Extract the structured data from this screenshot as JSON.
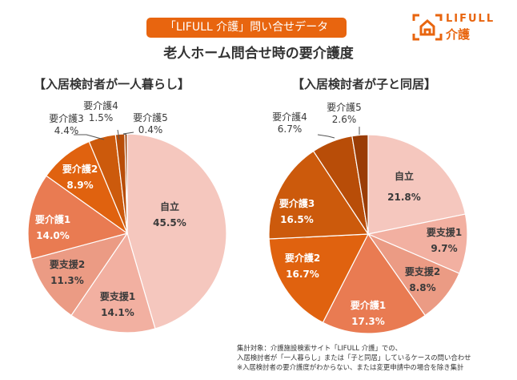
{
  "header": {
    "badge": "「LIFULL 介護」問い合せデータ",
    "title": "老人ホーム問合せ時の要介護度",
    "logo_line1": "LIFULL",
    "logo_line2": "介護",
    "brand_color": "#e8650f"
  },
  "chart_data": [
    {
      "type": "pie",
      "title": "【入居検討者が一人暮らし】",
      "categories": [
        "自立",
        "要支援1",
        "要支援2",
        "要介護1",
        "要介護2",
        "要介護3",
        "要介護4",
        "要介護5"
      ],
      "values": [
        45.5,
        14.1,
        11.3,
        14.0,
        8.9,
        4.4,
        1.5,
        0.4
      ],
      "labels": [
        "45.5%",
        "14.1%",
        "11.3%",
        "14.0%",
        "8.9%",
        "4.4%",
        "1.5%",
        "0.4%"
      ],
      "colors": [
        "#f5c7be",
        "#f2b0a1",
        "#eb9b84",
        "#e97b52",
        "#e0620f",
        "#cc5a0c",
        "#b84d08",
        "#9a3d06"
      ],
      "start": "12 o'clock",
      "direction": "clockwise",
      "legend": "none"
    },
    {
      "type": "pie",
      "title": "【入居検討者が子と同居】",
      "categories": [
        "自立",
        "要支援1",
        "要支援2",
        "要介護1",
        "要介護2",
        "要介護3",
        "要介護4",
        "要介護5"
      ],
      "values": [
        21.8,
        9.7,
        8.8,
        17.3,
        16.7,
        16.5,
        6.7,
        2.6
      ],
      "labels": [
        "21.8%",
        "9.7%",
        "8.8%",
        "17.3%",
        "16.7%",
        "16.5%",
        "6.7%",
        "2.6%"
      ],
      "colors": [
        "#f5c7be",
        "#f2b0a1",
        "#eb9b84",
        "#e97b52",
        "#e0620f",
        "#cc5a0c",
        "#b84d08",
        "#9a3d06"
      ],
      "start": "12 o'clock",
      "direction": "clockwise",
      "legend": "none"
    }
  ],
  "footnote": [
    "集計対象：介護施設検索サイト「LIFULL 介護」での、",
    "入居検討者が「一人暮らし」または「子と同居」しているケースの問い合わせ",
    "※入居検討者の要介護度がわからない、または変更申請中の場合を除き集計"
  ]
}
